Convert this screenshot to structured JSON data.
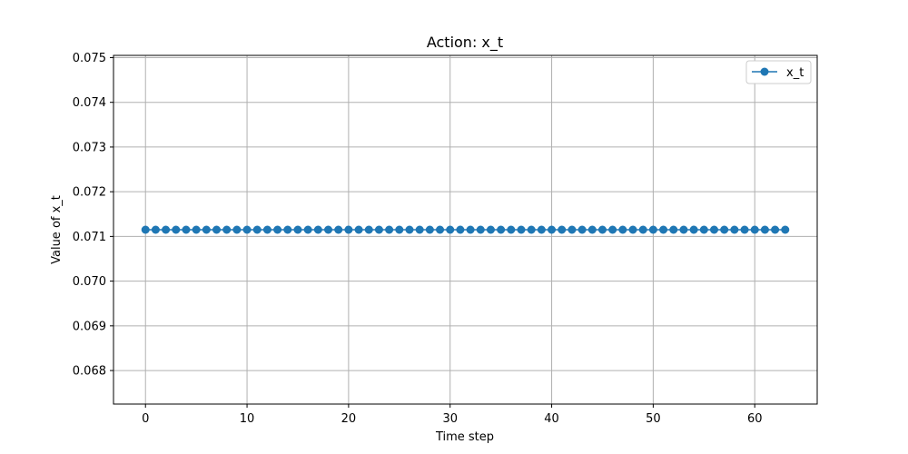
{
  "chart_data": {
    "type": "line",
    "title": "Action: x_t",
    "xlabel": "Time step",
    "ylabel": "Value of x_t",
    "xlim": [
      -3.15,
      66.15
    ],
    "ylim": [
      0.06725,
      0.07505
    ],
    "xticks": [
      0,
      10,
      20,
      30,
      40,
      50,
      60
    ],
    "yticks": [
      0.068,
      0.069,
      0.07,
      0.071,
      0.072,
      0.073,
      0.074,
      0.075
    ],
    "grid": true,
    "legend": "top-right",
    "series": [
      {
        "name": "x_t",
        "color": "#1f77b4",
        "marker": "circle",
        "x": [
          0,
          1,
          2,
          3,
          4,
          5,
          6,
          7,
          8,
          9,
          10,
          11,
          12,
          13,
          14,
          15,
          16,
          17,
          18,
          19,
          20,
          21,
          22,
          23,
          24,
          25,
          26,
          27,
          28,
          29,
          30,
          31,
          32,
          33,
          34,
          35,
          36,
          37,
          38,
          39,
          40,
          41,
          42,
          43,
          44,
          45,
          46,
          47,
          48,
          49,
          50,
          51,
          52,
          53,
          54,
          55,
          56,
          57,
          58,
          59,
          60,
          61,
          62,
          63
        ],
        "values": [
          0.07115,
          0.07115,
          0.07115,
          0.07115,
          0.07115,
          0.07115,
          0.07115,
          0.07115,
          0.07115,
          0.07115,
          0.07115,
          0.07115,
          0.07115,
          0.07115,
          0.07115,
          0.07115,
          0.07115,
          0.07115,
          0.07115,
          0.07115,
          0.07115,
          0.07115,
          0.07115,
          0.07115,
          0.07115,
          0.07115,
          0.07115,
          0.07115,
          0.07115,
          0.07115,
          0.07115,
          0.07115,
          0.07115,
          0.07115,
          0.07115,
          0.07115,
          0.07115,
          0.07115,
          0.07115,
          0.07115,
          0.07115,
          0.07115,
          0.07115,
          0.07115,
          0.07115,
          0.07115,
          0.07115,
          0.07115,
          0.07115,
          0.07115,
          0.07115,
          0.07115,
          0.07115,
          0.07115,
          0.07115,
          0.07115,
          0.07115,
          0.07115,
          0.07115,
          0.07115,
          0.07115,
          0.07115,
          0.07115,
          0.07115
        ]
      }
    ]
  }
}
